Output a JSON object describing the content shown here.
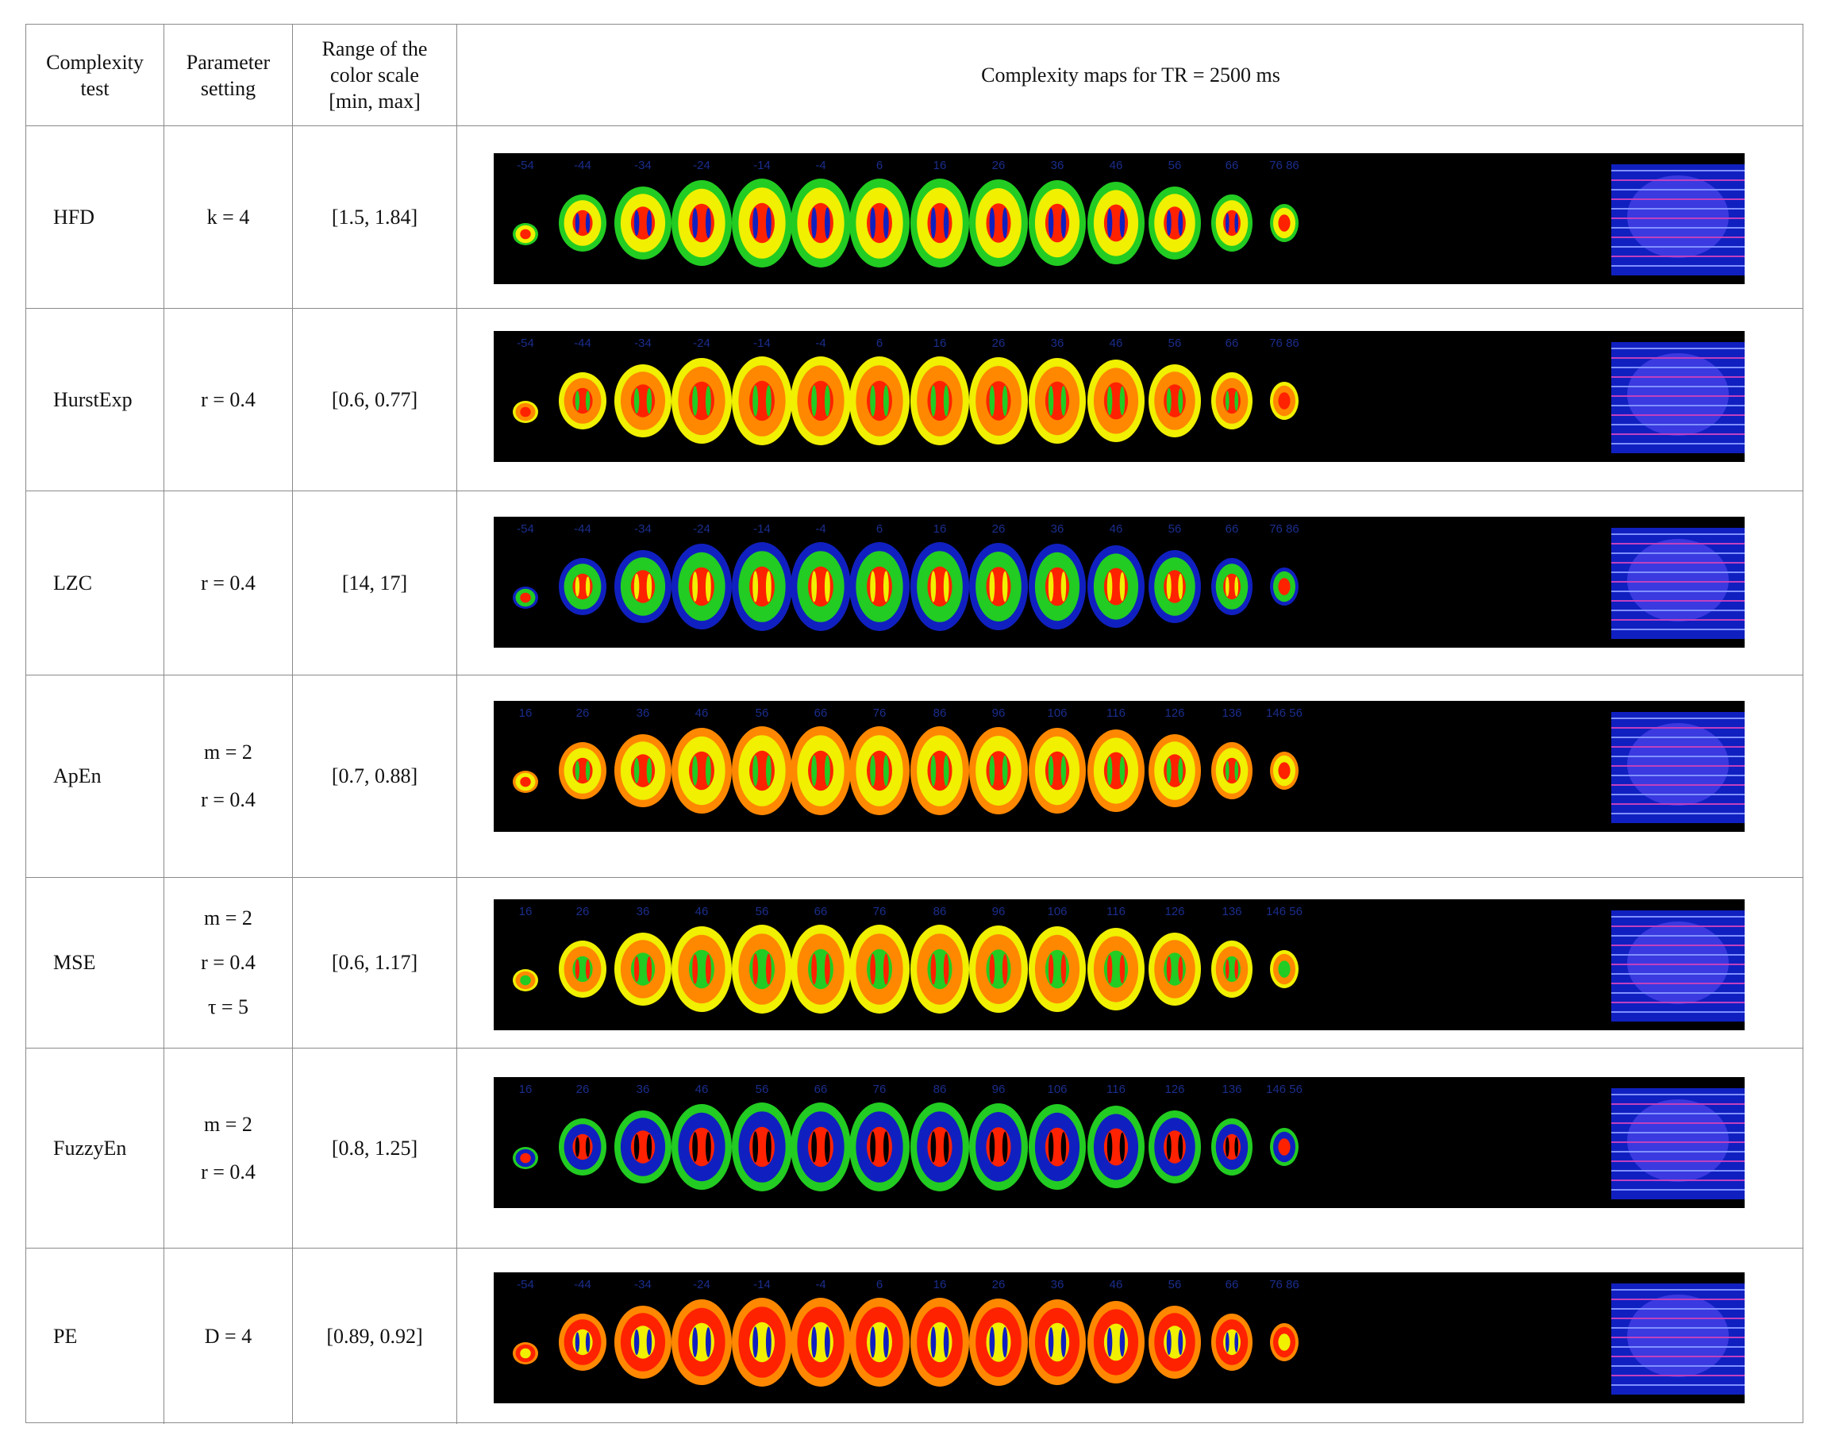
{
  "header": {
    "col1_line1": "Complexity",
    "col1_line2": "test",
    "col2_line1": "Parameter",
    "col2_line2": "setting",
    "col3_line1": "Range of the",
    "col3_line2": "color scale",
    "col3_line3": "[min, max]",
    "col4": "Complexity maps for TR = 2500 ms"
  },
  "slice_labels_a": [
    "-54",
    "-44",
    "-34",
    "-24",
    "-14",
    "-4",
    "6",
    "16",
    "26",
    "36",
    "46",
    "56",
    "66",
    "76 86"
  ],
  "slice_labels_b": [
    "16",
    "26",
    "36",
    "46",
    "56",
    "66",
    "76",
    "86",
    "96",
    "106",
    "116",
    "126",
    "136",
    "146 56"
  ],
  "rows": [
    {
      "test": "HFD",
      "params": [
        "k = 4"
      ],
      "range": "[1.5, 1.84]",
      "labels": "a"
    },
    {
      "test": "HurstExp",
      "params": [
        "r = 0.4"
      ],
      "range": "[0.6, 0.77]",
      "labels": "a"
    },
    {
      "test": "LZC",
      "params": [
        "r = 0.4"
      ],
      "range": "[14, 17]",
      "labels": "a"
    },
    {
      "test": "ApEn",
      "params": [
        "m = 2",
        "r = 0.4"
      ],
      "range": "[0.7, 0.88]",
      "labels": "b"
    },
    {
      "test": "MSE",
      "params": [
        "m = 2",
        "r = 0.4",
        "τ = 5"
      ],
      "range": "[0.6, 1.17]",
      "labels": "b"
    },
    {
      "test": "FuzzyEn",
      "params": [
        "m = 2",
        "r = 0.4"
      ],
      "range": "[0.8, 1.25]",
      "labels": "b"
    },
    {
      "test": "PE",
      "params": [
        "D = 4"
      ],
      "range": "[0.89, 0.92]",
      "labels": "a"
    }
  ],
  "colors": {
    "red": "#ff2200",
    "orange": "#ff8800",
    "yellow": "#f0f000",
    "green": "#22cc22",
    "blue": "#1020c0",
    "background": "#000000"
  }
}
